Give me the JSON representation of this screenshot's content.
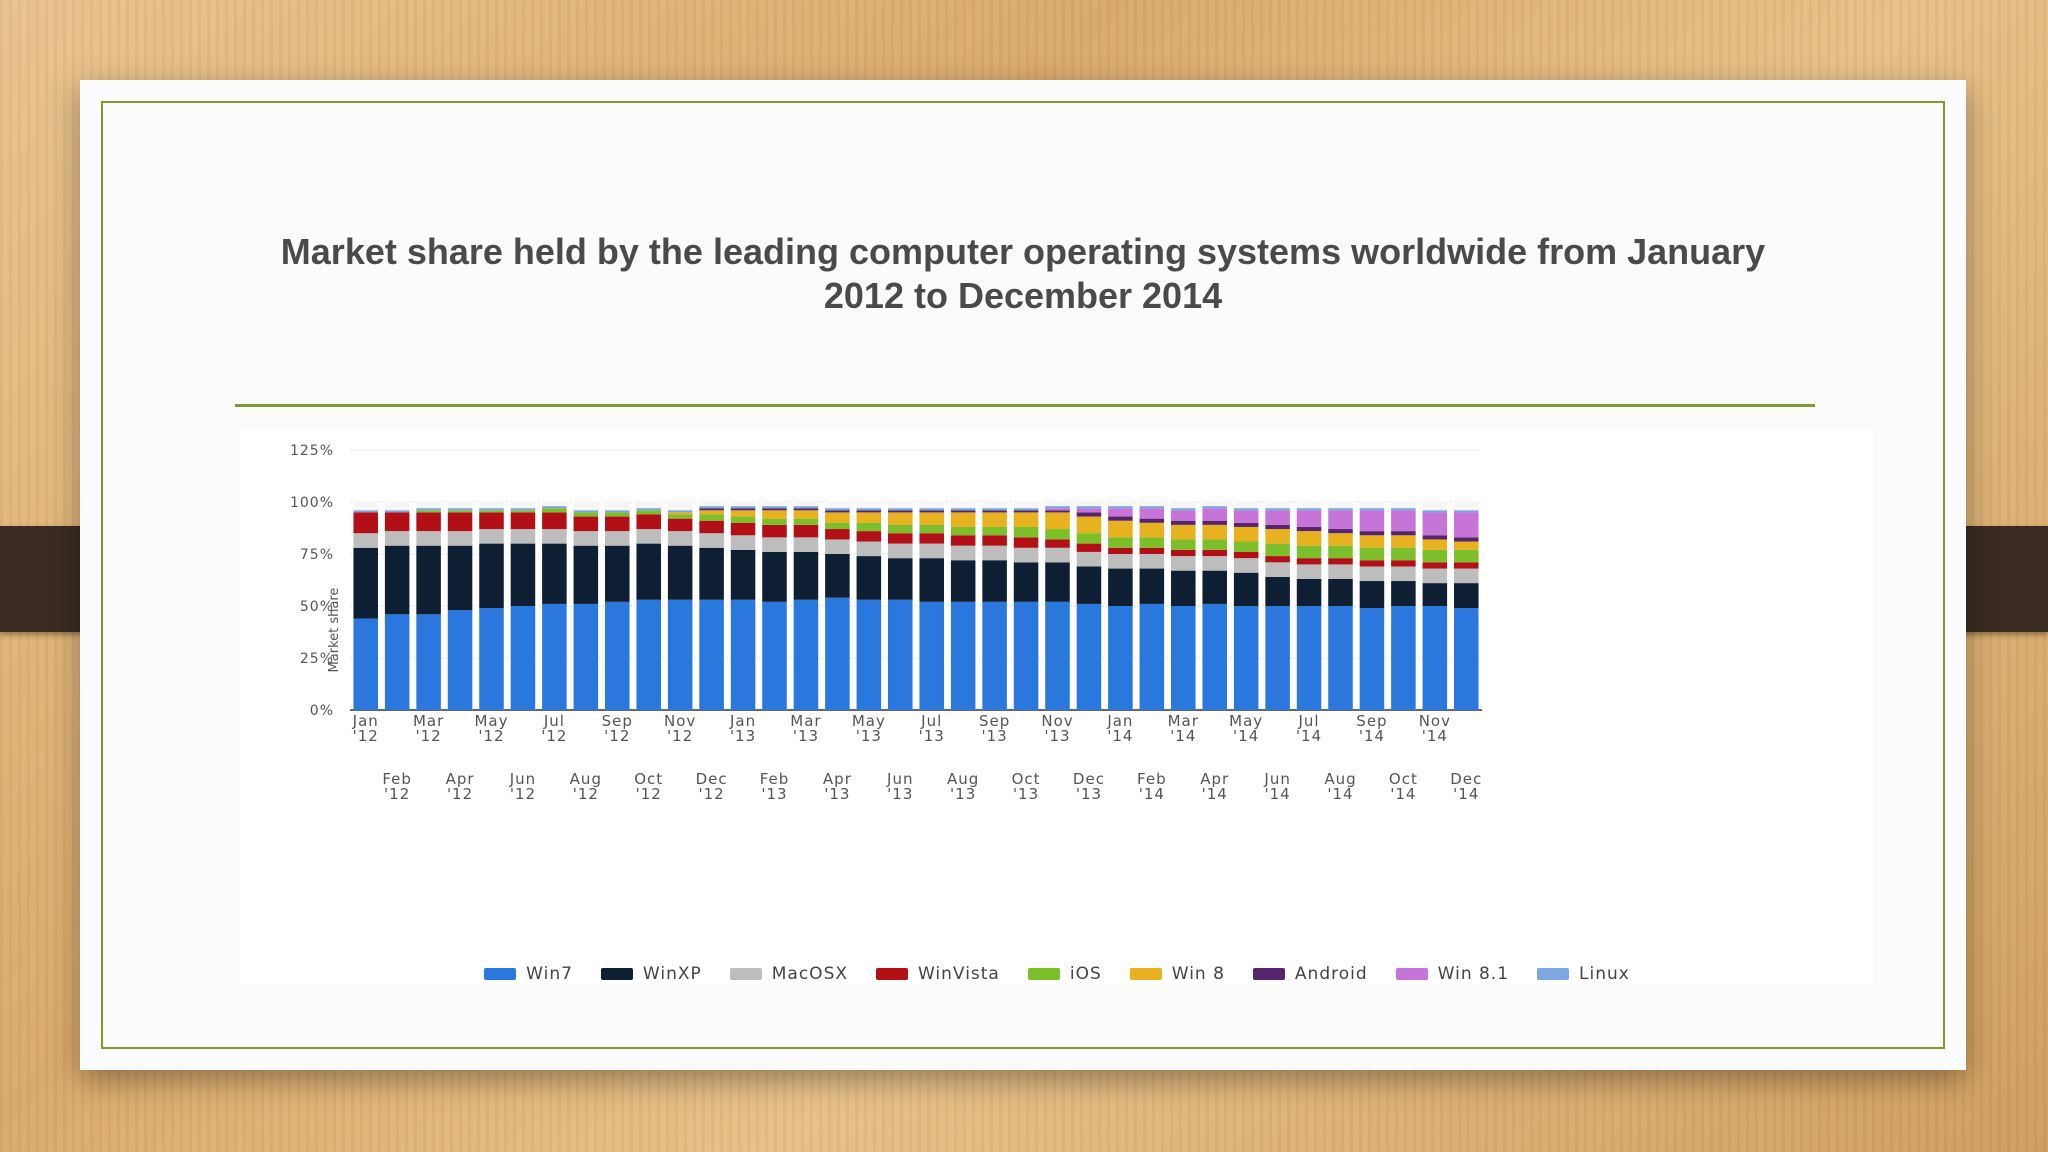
{
  "slide": {
    "title": "Market share held by the leading computer operating systems worldwide from January 2012 to December 2014"
  },
  "chart_data": {
    "type": "bar",
    "stacked": true,
    "ylabel": "Market share",
    "ylim": [
      0,
      125
    ],
    "yticks": [
      "0%",
      "25%",
      "50%",
      "75%",
      "100%",
      "125%"
    ],
    "grid": true,
    "legend_position": "bottom",
    "categories_top": [
      "Jan",
      "Feb",
      "Mar",
      "Apr",
      "May",
      "Jun",
      "Jul",
      "Aug",
      "Sep",
      "Oct",
      "Nov",
      "Dec",
      "Jan",
      "Feb",
      "Mar",
      "Apr",
      "May",
      "Jun",
      "Jul",
      "Aug",
      "Sep",
      "Oct",
      "Nov",
      "Dec",
      "Jan",
      "Feb",
      "Mar",
      "Apr",
      "May",
      "Jun",
      "Jul",
      "Aug",
      "Sep",
      "Oct",
      "Nov",
      "Dec"
    ],
    "categories_bottom": [
      "'12",
      "'12",
      "'12",
      "'12",
      "'12",
      "'12",
      "'12",
      "'12",
      "'12",
      "'12",
      "'12",
      "'12",
      "'13",
      "'13",
      "'13",
      "'13",
      "'13",
      "'13",
      "'13",
      "'13",
      "'13",
      "'13",
      "'13",
      "'13",
      "'14",
      "'14",
      "'14",
      "'14",
      "'14",
      "'14",
      "'14",
      "'14",
      "'14",
      "'14",
      "'14",
      "'14"
    ],
    "series": [
      {
        "name": "Win7",
        "color": "#2a78de",
        "values": [
          44,
          46,
          46,
          48,
          49,
          50,
          51,
          51,
          52,
          53,
          53,
          53,
          53,
          52,
          53,
          54,
          53,
          53,
          52,
          52,
          52,
          52,
          52,
          51,
          50,
          51,
          50,
          51,
          50,
          50,
          50,
          50,
          49,
          50,
          50,
          49
        ]
      },
      {
        "name": "WinXP",
        "color": "#0f1f33",
        "values": [
          34,
          33,
          33,
          31,
          31,
          30,
          29,
          28,
          27,
          27,
          26,
          25,
          24,
          24,
          23,
          21,
          21,
          20,
          21,
          20,
          20,
          19,
          19,
          18,
          18,
          17,
          17,
          16,
          16,
          14,
          13,
          13,
          13,
          12,
          11,
          12
        ]
      },
      {
        "name": "MacOSX",
        "color": "#bdbdbd",
        "values": [
          7,
          7,
          7,
          7,
          7,
          7,
          7,
          7,
          7,
          7,
          7,
          7,
          7,
          7,
          7,
          7,
          7,
          7,
          7,
          7,
          7,
          7,
          7,
          7,
          7,
          7,
          7,
          7,
          7,
          7,
          7,
          7,
          7,
          7,
          7,
          7
        ]
      },
      {
        "name": "WinVista",
        "color": "#b30f16",
        "values": [
          10,
          9,
          9,
          9,
          8,
          8,
          8,
          7,
          7,
          7,
          6,
          6,
          6,
          6,
          6,
          5,
          5,
          5,
          5,
          5,
          5,
          5,
          4,
          4,
          3,
          3,
          3,
          3,
          3,
          3,
          3,
          3,
          3,
          3,
          3,
          3
        ]
      },
      {
        "name": "iOS",
        "color": "#7cbf2a",
        "values": [
          0,
          0,
          1,
          1,
          1,
          1,
          2,
          2,
          2,
          2,
          2,
          3,
          3,
          3,
          3,
          3,
          4,
          4,
          4,
          4,
          4,
          5,
          5,
          5,
          5,
          5,
          5,
          5,
          5,
          6,
          6,
          6,
          6,
          6,
          6,
          6
        ]
      },
      {
        "name": "Win 8",
        "color": "#e8b120",
        "values": [
          0,
          0,
          0,
          0,
          0,
          0,
          0,
          0,
          0,
          0,
          1,
          2,
          3,
          4,
          4,
          5,
          5,
          6,
          6,
          7,
          7,
          7,
          8,
          8,
          8,
          7,
          7,
          7,
          7,
          7,
          7,
          6,
          6,
          6,
          5,
          4
        ]
      },
      {
        "name": "Android",
        "color": "#55266d",
        "values": [
          0,
          0,
          0,
          0,
          0,
          0,
          0,
          0,
          0,
          0,
          0,
          1,
          1,
          1,
          1,
          1,
          1,
          1,
          1,
          1,
          1,
          1,
          1,
          2,
          2,
          2,
          2,
          2,
          2,
          2,
          2,
          2,
          2,
          2,
          2,
          2
        ]
      },
      {
        "name": "Win 8.1",
        "color": "#c774d9",
        "values": [
          0,
          0,
          0,
          0,
          0,
          0,
          0,
          0,
          0,
          0,
          0,
          0,
          0,
          0,
          0,
          0,
          0,
          0,
          0,
          0,
          0,
          0,
          1,
          2,
          4,
          5,
          5,
          6,
          6,
          7,
          8,
          9,
          10,
          10,
          11,
          12
        ]
      },
      {
        "name": "Linux",
        "color": "#7da7e0",
        "values": [
          1,
          1,
          1,
          1,
          1,
          1,
          1,
          1,
          1,
          1,
          1,
          1,
          1,
          1,
          1,
          1,
          1,
          1,
          1,
          1,
          1,
          1,
          1,
          1,
          1,
          1,
          1,
          1,
          1,
          1,
          1,
          1,
          1,
          1,
          1,
          1
        ]
      }
    ]
  }
}
